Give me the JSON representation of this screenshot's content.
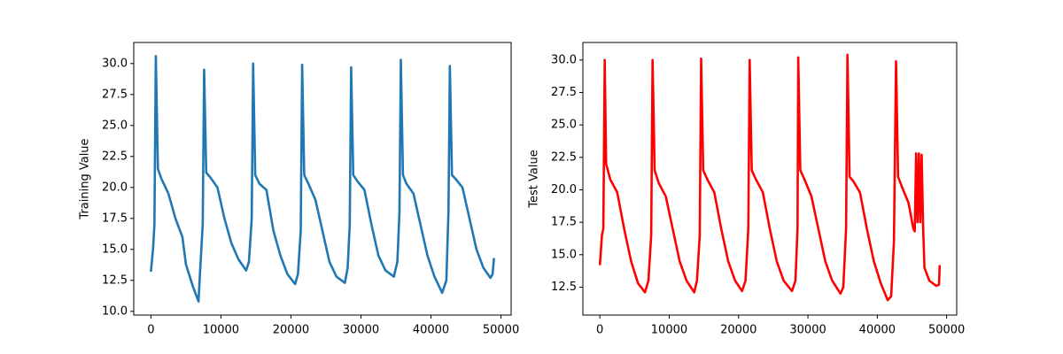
{
  "chart_data": [
    {
      "type": "line",
      "ylabel": "Training Value",
      "color": "#1f77b4",
      "x": [
        0,
        300,
        500,
        700,
        1000,
        1500,
        2500,
        3500,
        4500,
        5000,
        6000,
        6800,
        7000,
        7400,
        7600,
        7900,
        8500,
        9500,
        10500,
        11500,
        12500,
        13600,
        14000,
        14400,
        14600,
        14900,
        15500,
        16500,
        17500,
        18500,
        19500,
        20600,
        21000,
        21400,
        21600,
        21900,
        22500,
        23500,
        24500,
        25500,
        26500,
        27700,
        28100,
        28400,
        28600,
        28900,
        29500,
        30500,
        31500,
        32500,
        33500,
        34700,
        35200,
        35500,
        35700,
        36000,
        36500,
        37500,
        38500,
        39500,
        40500,
        41600,
        42200,
        42500,
        42700,
        43000,
        43500,
        44500,
        45500,
        46500,
        47500,
        48500,
        48800,
        49000
      ],
      "values": [
        13.2,
        15,
        17,
        30.6,
        21.5,
        20.7,
        19.5,
        17.5,
        16,
        13.8,
        12,
        10.8,
        13,
        17,
        29.5,
        21.2,
        20.8,
        20,
        17.5,
        15.5,
        14.2,
        13.3,
        14,
        17.5,
        30,
        21,
        20.3,
        19.8,
        16.5,
        14.5,
        13,
        12.2,
        13,
        16.5,
        29.9,
        21,
        20.3,
        19,
        16.5,
        14,
        12.8,
        12.3,
        13.5,
        17,
        29.7,
        21,
        20.5,
        19.8,
        17,
        14.5,
        13.3,
        12.8,
        14,
        18,
        30.3,
        21,
        20.3,
        19.5,
        17,
        14.5,
        12.8,
        11.5,
        12.5,
        18,
        29.8,
        21,
        20.7,
        20,
        17.5,
        15,
        13.5,
        12.7,
        13,
        14.3
      ],
      "xlim": [
        -2450,
        51450
      ],
      "xticks": [
        0,
        10000,
        20000,
        30000,
        40000,
        50000
      ],
      "ylim": [
        9.7,
        31.7
      ],
      "yticks": [
        {
          "value": 10,
          "label": "10.0"
        },
        {
          "value": 12.5,
          "label": "12.5"
        },
        {
          "value": 15,
          "label": "15.0"
        },
        {
          "value": 17.5,
          "label": "17.5"
        },
        {
          "value": 20,
          "label": "20.0"
        },
        {
          "value": 22.5,
          "label": "22.5"
        },
        {
          "value": 25,
          "label": "25.0"
        },
        {
          "value": 27.5,
          "label": "27.5"
        },
        {
          "value": 30,
          "label": "30.0"
        }
      ]
    },
    {
      "type": "line",
      "ylabel": "Test Value",
      "color": "#ff0000",
      "x": [
        0,
        300,
        500,
        700,
        900,
        1500,
        2500,
        3500,
        4500,
        5500,
        6500,
        7000,
        7400,
        7600,
        7900,
        8500,
        9500,
        10500,
        11500,
        12500,
        13600,
        14000,
        14400,
        14600,
        14900,
        15500,
        16500,
        17500,
        18500,
        19500,
        20500,
        21000,
        21400,
        21600,
        21900,
        22500,
        23500,
        24500,
        25500,
        26500,
        27700,
        28200,
        28500,
        28600,
        28900,
        29500,
        30500,
        31500,
        32500,
        33500,
        34700,
        35100,
        35500,
        35700,
        36000,
        36500,
        37500,
        38500,
        39500,
        40500,
        41500,
        42000,
        42400,
        42700,
        43000,
        43500,
        44500,
        45200,
        45400,
        45600,
        45800,
        46000,
        46200,
        46400,
        46600,
        46800,
        47500,
        48500,
        48900,
        49000
      ],
      "values": [
        14.2,
        16.5,
        17,
        30,
        22,
        20.8,
        19.8,
        17,
        14.5,
        12.8,
        12.1,
        13,
        16.5,
        30,
        21.5,
        20.5,
        19.5,
        17,
        14.5,
        13,
        12.1,
        13,
        16.5,
        30.1,
        21.5,
        20.8,
        19.8,
        17,
        14.5,
        13,
        12.2,
        13,
        17,
        30,
        21.5,
        20.8,
        19.8,
        17,
        14.5,
        13,
        12.2,
        13,
        17,
        30.2,
        21.5,
        20.8,
        19.5,
        17,
        14.5,
        13,
        12,
        12.5,
        17,
        30.4,
        21,
        20.7,
        19.8,
        17,
        14.5,
        12.8,
        11.5,
        11.8,
        16,
        29.9,
        21,
        20.3,
        19,
        17,
        16.8,
        22.8,
        17.5,
        22.8,
        17.5,
        22.7,
        17.3,
        14,
        13,
        12.6,
        12.7,
        14.2
      ],
      "xlim": [
        -2450,
        51450
      ],
      "xticks": [
        0,
        10000,
        20000,
        30000,
        40000,
        50000
      ],
      "ylim": [
        10.35,
        31.35
      ],
      "yticks": [
        {
          "value": 12.5,
          "label": "12.5"
        },
        {
          "value": 15,
          "label": "15.0"
        },
        {
          "value": 17.5,
          "label": "17.5"
        },
        {
          "value": 20,
          "label": "20.0"
        },
        {
          "value": 22.5,
          "label": "22.5"
        },
        {
          "value": 25,
          "label": "25.0"
        },
        {
          "value": 27.5,
          "label": "27.5"
        },
        {
          "value": 30,
          "label": "30.0"
        }
      ]
    }
  ]
}
